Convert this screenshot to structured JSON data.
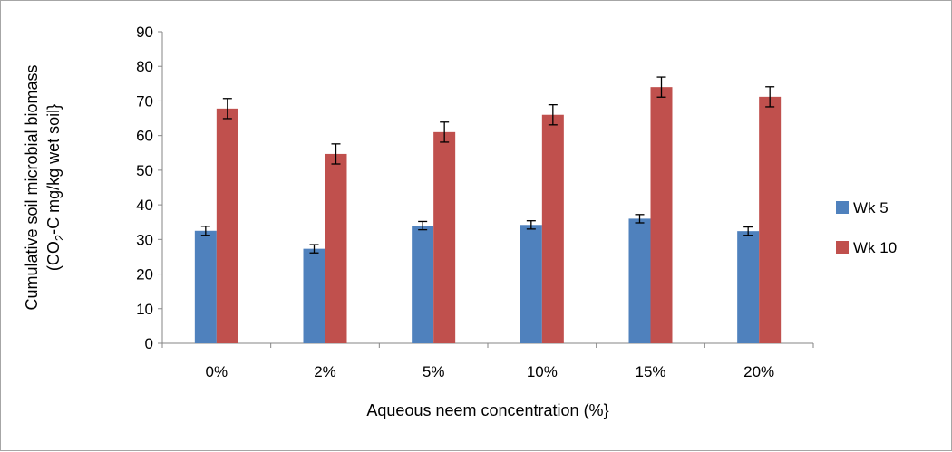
{
  "chart_data": {
    "type": "bar",
    "categories": [
      "0%",
      "2%",
      "5%",
      "10%",
      "15%",
      "20%"
    ],
    "series": [
      {
        "name": "Wk 5",
        "color": "#4f81bd",
        "values": [
          32.5,
          27.3,
          34.0,
          34.2,
          36.0,
          32.4
        ],
        "errors": [
          1.3,
          1.2,
          1.2,
          1.2,
          1.2,
          1.2
        ]
      },
      {
        "name": "Wk 10",
        "color": "#c0504d",
        "values": [
          67.8,
          54.7,
          61.0,
          66.0,
          74.0,
          71.2
        ],
        "errors": [
          2.9,
          2.9,
          2.9,
          2.9,
          2.9,
          2.9
        ]
      }
    ],
    "xlabel": "Aqueous neem concentration (%}",
    "ylabel": {
      "line1": "Cumulative soil microbial biomass",
      "line2_prefix": "(CO",
      "line2_sub": "2",
      "line2_suffix": "-C mg/kg wet soil}"
    },
    "ylim": [
      0,
      90
    ],
    "yticks": [
      0,
      10,
      20,
      30,
      40,
      50,
      60,
      70,
      80,
      90
    ],
    "grid": false,
    "legend_position": "right"
  }
}
